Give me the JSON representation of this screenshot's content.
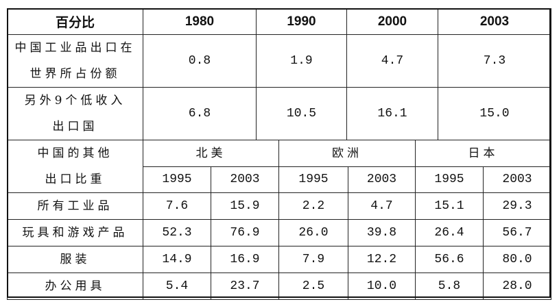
{
  "upper": {
    "header": [
      "百分比",
      "1980",
      "1990",
      "2000",
      "2003"
    ],
    "rows": [
      {
        "label": [
          "中国工业品出口在",
          "世界所占份额"
        ],
        "values": [
          "0.8",
          "1.9",
          "4.7",
          "7.3"
        ]
      },
      {
        "label": [
          "另外9个低收入",
          "出口国"
        ],
        "values": [
          "6.8",
          "10.5",
          "16.1",
          "15.0"
        ]
      }
    ]
  },
  "lower": {
    "label": [
      "中国的其他",
      "出口比重"
    ],
    "regions": [
      "北美",
      "欧洲",
      "日本"
    ],
    "years": [
      "1995",
      "2003",
      "1995",
      "2003",
      "1995",
      "2003"
    ],
    "rows": [
      {
        "label": "所有工业品",
        "values": [
          "7.6",
          "15.9",
          "2.2",
          "4.7",
          "15.1",
          "29.3"
        ]
      },
      {
        "label": "玩具和游戏产品",
        "values": [
          "52.3",
          "76.9",
          "26.0",
          "39.8",
          "26.4",
          "56.7"
        ]
      },
      {
        "label": "服装",
        "values": [
          "14.9",
          "16.9",
          "7.9",
          "12.2",
          "56.6",
          "80.0"
        ]
      },
      {
        "label": "办公用具",
        "values": [
          "5.4",
          "23.7",
          "2.5",
          "10.0",
          "5.8",
          "28.0"
        ]
      }
    ]
  }
}
